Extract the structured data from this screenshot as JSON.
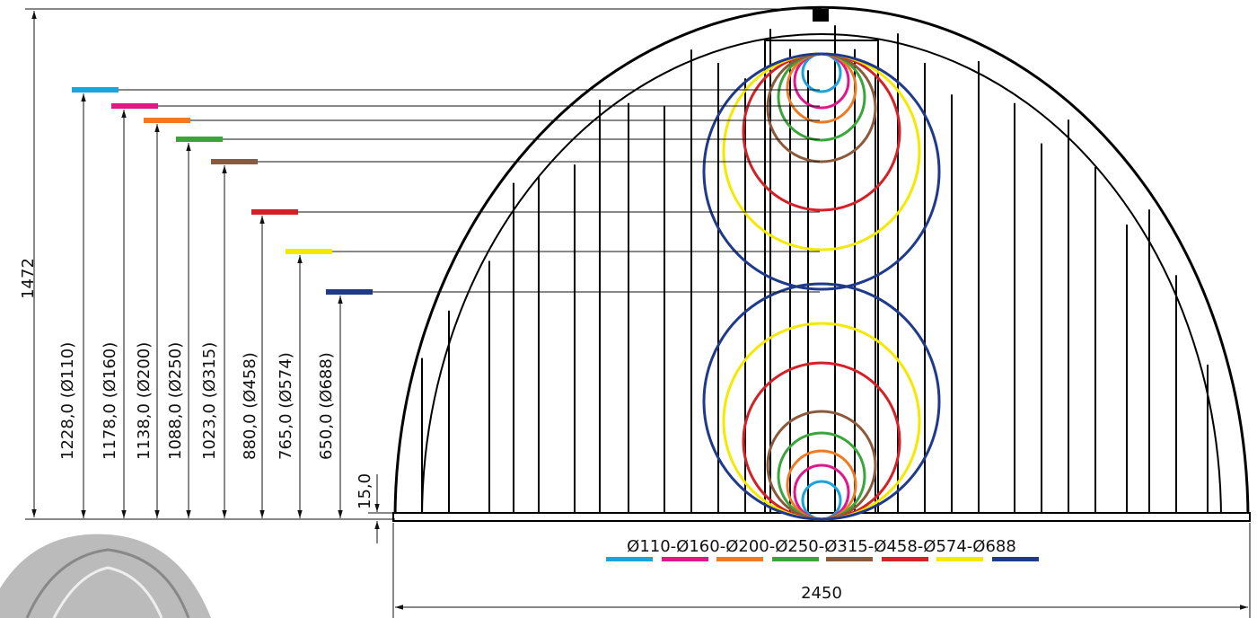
{
  "dimensions": {
    "total_height": "1472",
    "total_width": "2450",
    "base_offset": "15,0"
  },
  "pipes": [
    {
      "label": "1228,0 (Ø110)",
      "color": "#1aa3dd"
    },
    {
      "label": "1178,0 (Ø160)",
      "color": "#e0168b"
    },
    {
      "label": "1138,0 (Ø200)",
      "color": "#f07a22"
    },
    {
      "label": "1088,0 (Ø250)",
      "color": "#3aa53a"
    },
    {
      "label": "1023,0 (Ø315)",
      "color": "#8b5a3c"
    },
    {
      "label": "880,0 (Ø458)",
      "color": "#d42027"
    },
    {
      "label": "765,0 (Ø574)",
      "color": "#f5e900"
    },
    {
      "label": "650,0 (Ø688)",
      "color": "#1f3a8a"
    }
  ],
  "legend": "Ø110-Ø160-Ø200-Ø250-Ø315-Ø458-Ø574-Ø688"
}
